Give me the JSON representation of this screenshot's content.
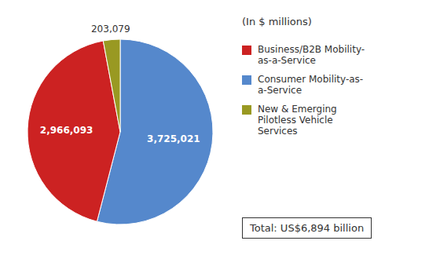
{
  "chart_data": {
    "type": "pie",
    "subtitle": "(In $ millions)",
    "categories": [
      "Consumer Mobility-as-\na-Service",
      "Business/B2B Mobility-\nas-a-Service",
      "New & Emerging\nPilotless Vehicle\nServices"
    ],
    "values": [
      3725021,
      2966093,
      203079
    ],
    "value_labels": [
      "3,725,021",
      "2,966,093",
      "203,079"
    ],
    "colors": [
      "#5588cc",
      "#cc2222",
      "#999922"
    ],
    "data_labels": true,
    "legend": "right",
    "annotations": [
      "Total: US$6,894 billion"
    ]
  }
}
